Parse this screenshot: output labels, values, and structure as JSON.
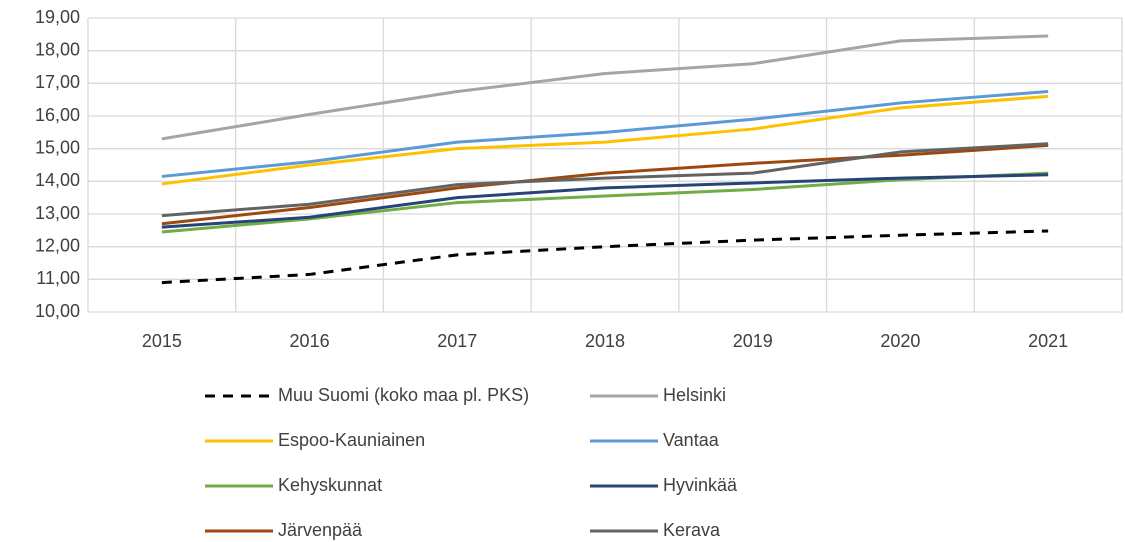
{
  "chart_data": {
    "type": "line",
    "categories": [
      "2015",
      "2016",
      "2017",
      "2018",
      "2019",
      "2020",
      "2021"
    ],
    "ylim": [
      10,
      19
    ],
    "yticks": [
      {
        "value": 10,
        "label": "10,00"
      },
      {
        "value": 11,
        "label": "11,00"
      },
      {
        "value": 12,
        "label": "12,00"
      },
      {
        "value": 13,
        "label": "13,00"
      },
      {
        "value": 14,
        "label": "14,00"
      },
      {
        "value": 15,
        "label": "15,00"
      },
      {
        "value": 16,
        "label": "16,00"
      },
      {
        "value": 17,
        "label": "17,00"
      },
      {
        "value": 18,
        "label": "18,00"
      },
      {
        "value": 19,
        "label": "19,00"
      }
    ],
    "grid": true,
    "legend": "bottom",
    "series": [
      {
        "name": "Muu Suomi (koko maa pl. PKS)",
        "color": "#000000",
        "dashed": true,
        "values": [
          10.9,
          11.15,
          11.75,
          12.0,
          12.2,
          12.35,
          12.48
        ]
      },
      {
        "name": "Helsinki",
        "color": "#a5a5a5",
        "values": [
          15.3,
          16.05,
          16.75,
          17.3,
          17.6,
          18.3,
          18.45
        ]
      },
      {
        "name": "Espoo-Kauniainen",
        "color": "#ffc000",
        "values": [
          13.92,
          14.5,
          15.0,
          15.2,
          15.6,
          16.25,
          16.6
        ]
      },
      {
        "name": "Vantaa",
        "color": "#5b9bd5",
        "values": [
          14.15,
          14.6,
          15.2,
          15.5,
          15.9,
          16.4,
          16.75
        ]
      },
      {
        "name": "Kehyskunnat",
        "color": "#70ad47",
        "values": [
          12.45,
          12.85,
          13.35,
          13.55,
          13.75,
          14.05,
          14.25
        ]
      },
      {
        "name": "Hyvinkää",
        "color": "#264478",
        "values": [
          12.6,
          12.9,
          13.5,
          13.8,
          13.95,
          14.1,
          14.2
        ]
      },
      {
        "name": "Järvenpää",
        "color": "#9e480e",
        "values": [
          12.7,
          13.2,
          13.8,
          14.25,
          14.55,
          14.8,
          15.1
        ]
      },
      {
        "name": "Kerava",
        "color": "#636363",
        "values": [
          12.95,
          13.3,
          13.9,
          14.1,
          14.25,
          14.9,
          15.15
        ]
      }
    ]
  }
}
